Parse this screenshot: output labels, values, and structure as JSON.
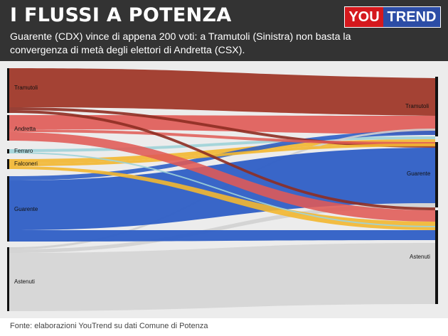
{
  "header": {
    "title": "I FLUSSI A POTENZA",
    "subtitle": "Guarente (CDX) vince di appena 200 voti: a Tramutoli (Sinistra) non basta la convergenza di metà degli elettori di Andretta (CSX).",
    "logo_part1": "YOU",
    "logo_part2": "TREND"
  },
  "sankey": {
    "left_nodes": [
      {
        "label": "Tramutoli",
        "color": "#a03a2c"
      },
      {
        "label": "Andretta",
        "color": "#e05a55"
      },
      {
        "label": "Ferraro",
        "color": "#9fd3d8"
      },
      {
        "label": "Falconeri",
        "color": "#f3b730"
      },
      {
        "label": "Guarente",
        "color": "#2f5fc6"
      },
      {
        "label": "Astenuti",
        "color": "#d6d6d6"
      }
    ],
    "right_nodes": [
      {
        "label": "Tramutoli"
      },
      {
        "label": "Guarente"
      },
      {
        "label": "Astenuti"
      }
    ]
  },
  "source": "Fonte: elaborazioni YouTrend su dati Comune di Potenza"
}
